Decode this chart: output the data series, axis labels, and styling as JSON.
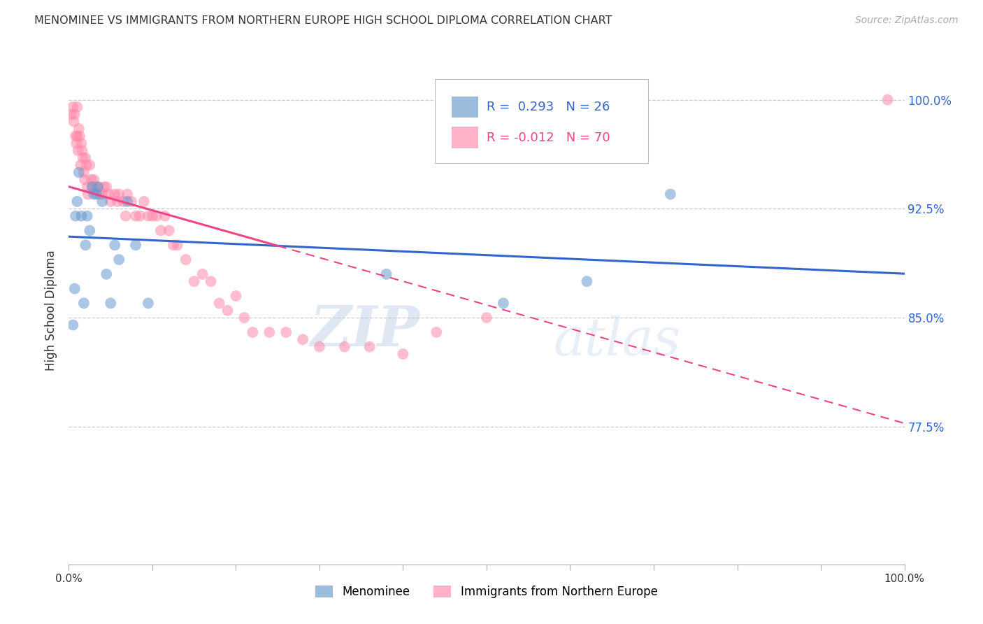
{
  "title": "MENOMINEE VS IMMIGRANTS FROM NORTHERN EUROPE HIGH SCHOOL DIPLOMA CORRELATION CHART",
  "source": "Source: ZipAtlas.com",
  "ylabel": "High School Diploma",
  "watermark": "ZIPatlas",
  "legend_blue_r": "R =  0.293",
  "legend_blue_n": "N = 26",
  "legend_pink_r": "R = -0.012",
  "legend_pink_n": "N = 70",
  "legend_label_blue": "Menominee",
  "legend_label_pink": "Immigrants from Northern Europe",
  "blue_color": "#6699cc",
  "pink_color": "#ff88aa",
  "blue_line_color": "#3366cc",
  "pink_line_color": "#ee4488",
  "yticks": [
    0.775,
    0.85,
    0.925,
    1.0
  ],
  "ytick_labels": [
    "77.5%",
    "85.0%",
    "92.5%",
    "100.0%"
  ],
  "xlim": [
    0.0,
    1.0
  ],
  "ylim": [
    0.68,
    1.03
  ],
  "blue_x": [
    0.005,
    0.007,
    0.008,
    0.01,
    0.012,
    0.015,
    0.018,
    0.02,
    0.022,
    0.025,
    0.028,
    0.03,
    0.033,
    0.035,
    0.04,
    0.045,
    0.05,
    0.055,
    0.06,
    0.07,
    0.08,
    0.095,
    0.38,
    0.52,
    0.62,
    0.72
  ],
  "blue_y": [
    0.845,
    0.87,
    0.92,
    0.93,
    0.95,
    0.92,
    0.86,
    0.9,
    0.92,
    0.91,
    0.94,
    0.935,
    0.935,
    0.94,
    0.93,
    0.88,
    0.86,
    0.9,
    0.89,
    0.93,
    0.9,
    0.86,
    0.88,
    0.86,
    0.875,
    0.935
  ],
  "pink_x": [
    0.003,
    0.005,
    0.006,
    0.007,
    0.008,
    0.009,
    0.01,
    0.01,
    0.011,
    0.012,
    0.013,
    0.014,
    0.015,
    0.016,
    0.017,
    0.018,
    0.019,
    0.02,
    0.021,
    0.022,
    0.023,
    0.025,
    0.027,
    0.028,
    0.03,
    0.032,
    0.035,
    0.037,
    0.04,
    0.042,
    0.045,
    0.048,
    0.05,
    0.055,
    0.058,
    0.06,
    0.065,
    0.068,
    0.07,
    0.075,
    0.08,
    0.085,
    0.09,
    0.095,
    0.1,
    0.105,
    0.11,
    0.115,
    0.12,
    0.125,
    0.13,
    0.14,
    0.15,
    0.16,
    0.17,
    0.18,
    0.19,
    0.2,
    0.21,
    0.22,
    0.24,
    0.26,
    0.28,
    0.3,
    0.33,
    0.36,
    0.4,
    0.44,
    0.5,
    0.98
  ],
  "pink_y": [
    0.99,
    0.995,
    0.985,
    0.99,
    0.975,
    0.97,
    0.995,
    0.975,
    0.965,
    0.98,
    0.975,
    0.955,
    0.97,
    0.965,
    0.96,
    0.95,
    0.945,
    0.96,
    0.955,
    0.94,
    0.935,
    0.955,
    0.945,
    0.94,
    0.945,
    0.94,
    0.94,
    0.935,
    0.935,
    0.94,
    0.94,
    0.935,
    0.93,
    0.935,
    0.93,
    0.935,
    0.93,
    0.92,
    0.935,
    0.93,
    0.92,
    0.92,
    0.93,
    0.92,
    0.92,
    0.92,
    0.91,
    0.92,
    0.91,
    0.9,
    0.9,
    0.89,
    0.875,
    0.88,
    0.875,
    0.86,
    0.855,
    0.865,
    0.85,
    0.84,
    0.84,
    0.84,
    0.835,
    0.83,
    0.83,
    0.83,
    0.825,
    0.84,
    0.85,
    1.0
  ]
}
